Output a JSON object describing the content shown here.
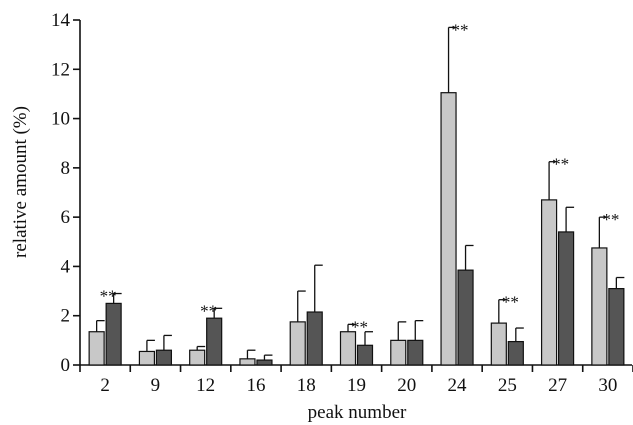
{
  "chart_data": {
    "type": "bar",
    "categories": [
      "2",
      "9",
      "12",
      "16",
      "18",
      "19",
      "20",
      "24",
      "25",
      "27",
      "30"
    ],
    "series": [
      {
        "color": "#c8c8c8",
        "values": [
          1.35,
          0.55,
          0.6,
          0.25,
          1.75,
          1.35,
          1.0,
          11.05,
          1.7,
          6.7,
          4.75
        ],
        "errors": [
          0.45,
          0.45,
          0.15,
          0.35,
          1.25,
          0.3,
          0.75,
          2.65,
          0.95,
          1.55,
          1.25
        ]
      },
      {
        "color": "#555555",
        "values": [
          2.5,
          0.6,
          1.9,
          0.2,
          2.15,
          0.8,
          1.0,
          3.85,
          0.95,
          5.4,
          3.1
        ],
        "errors": [
          0.4,
          0.6,
          0.4,
          0.2,
          1.9,
          0.55,
          0.8,
          1.0,
          0.55,
          1.0,
          0.45
        ]
      }
    ],
    "annotations": [
      "**",
      "",
      "**",
      "",
      "",
      "**",
      "",
      "**",
      "**",
      "**",
      "**"
    ],
    "xlabel": "peak number",
    "ylabel": "relative amount (%)",
    "yticks": [
      "0",
      "2",
      "4",
      "6",
      "8",
      "10",
      "12",
      "14"
    ],
    "ylim": [
      0,
      14
    ],
    "grid": false,
    "legend": "none"
  }
}
